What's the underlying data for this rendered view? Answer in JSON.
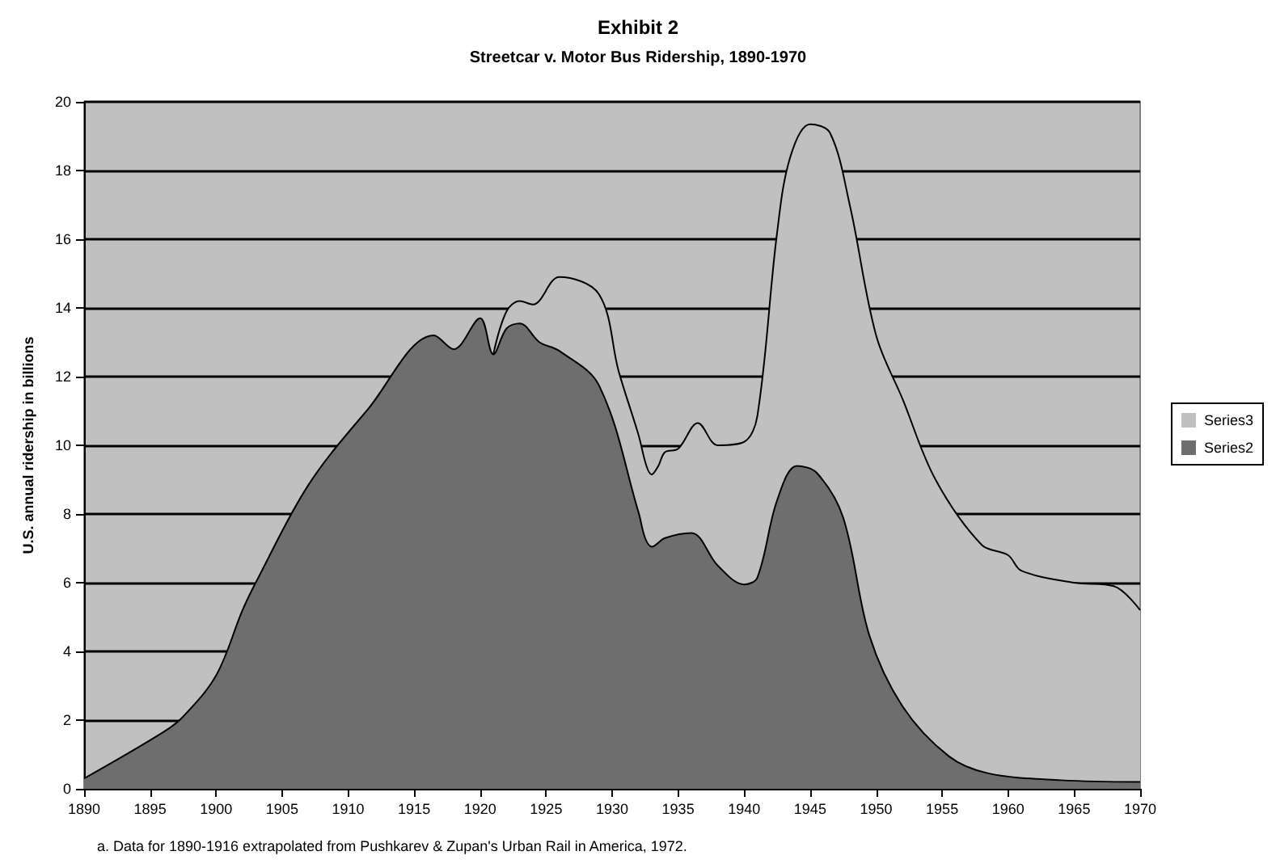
{
  "chart_data": {
    "type": "area",
    "title": "Exhibit 2",
    "subtitle": "Streetcar v. Motor Bus Ridership, 1890-1970",
    "ylabel": "U.S. annual ridership in billions",
    "annotations": [
      "a. Data for 1890-1916 extrapolated from Pushkarev & Zupan's Urban Rail in America, 1972."
    ],
    "xlim": [
      1890,
      1970
    ],
    "xticks": [
      1890,
      1895,
      1900,
      1905,
      1910,
      1915,
      1920,
      1925,
      1930,
      1935,
      1940,
      1945,
      1950,
      1955,
      1960,
      1965,
      1970
    ],
    "ylim": [
      0,
      20
    ],
    "yticks": [
      0,
      2,
      4,
      6,
      8,
      10,
      12,
      14,
      16,
      18,
      20
    ],
    "grid": "y",
    "legend": "right",
    "marker": "none",
    "line_style": "solid",
    "series": [
      {
        "name": "Series3",
        "color": "#c0c0c0",
        "x": [
          1921,
          1922,
          1923,
          1924,
          1926,
          1929,
          1930.5,
          1932,
          1932.6,
          1933,
          1933.5,
          1934,
          1935,
          1936.5,
          1938,
          1940,
          1941,
          1942.5,
          1943.5,
          1945,
          1946.5,
          1948,
          1950,
          1952,
          1954.5,
          1958,
          1960,
          1961,
          1965,
          1968,
          1970
        ],
        "values": [
          12.65,
          13.9,
          14.2,
          14.1,
          14.9,
          14.4,
          12.15,
          10.3,
          9.4,
          9.15,
          9.4,
          9.8,
          9.9,
          10.65,
          10.0,
          10.1,
          10.85,
          16.2,
          18.4,
          19.35,
          19.1,
          17.0,
          13.2,
          11.35,
          9.0,
          7.1,
          6.8,
          6.35,
          6.0,
          5.9,
          5.2
        ]
      },
      {
        "name": "Series2",
        "color": "#6e6e6e",
        "x": [
          1890,
          1896,
          1897.5,
          1900,
          1902,
          1903,
          1907,
          1911.5,
          1916.5,
          1918,
          1920,
          1921,
          1922,
          1923,
          1924.5,
          1926,
          1929,
          1932,
          1932.5,
          1933,
          1934,
          1936,
          1938,
          1940,
          1941,
          1942.5,
          1944,
          1945.5,
          1947.5,
          1949.5,
          1952,
          1955.5,
          1958.5,
          1964,
          1970
        ],
        "values": [
          0.3,
          1.65,
          2.1,
          3.3,
          5.2,
          6.0,
          8.85,
          11.05,
          13.2,
          12.8,
          13.7,
          12.65,
          13.4,
          13.55,
          13.0,
          12.75,
          11.75,
          8.05,
          7.3,
          7.05,
          7.3,
          7.45,
          6.5,
          5.95,
          6.15,
          8.4,
          9.4,
          9.2,
          7.9,
          4.45,
          2.4,
          0.95,
          0.45,
          0.25,
          0.2
        ]
      }
    ]
  }
}
